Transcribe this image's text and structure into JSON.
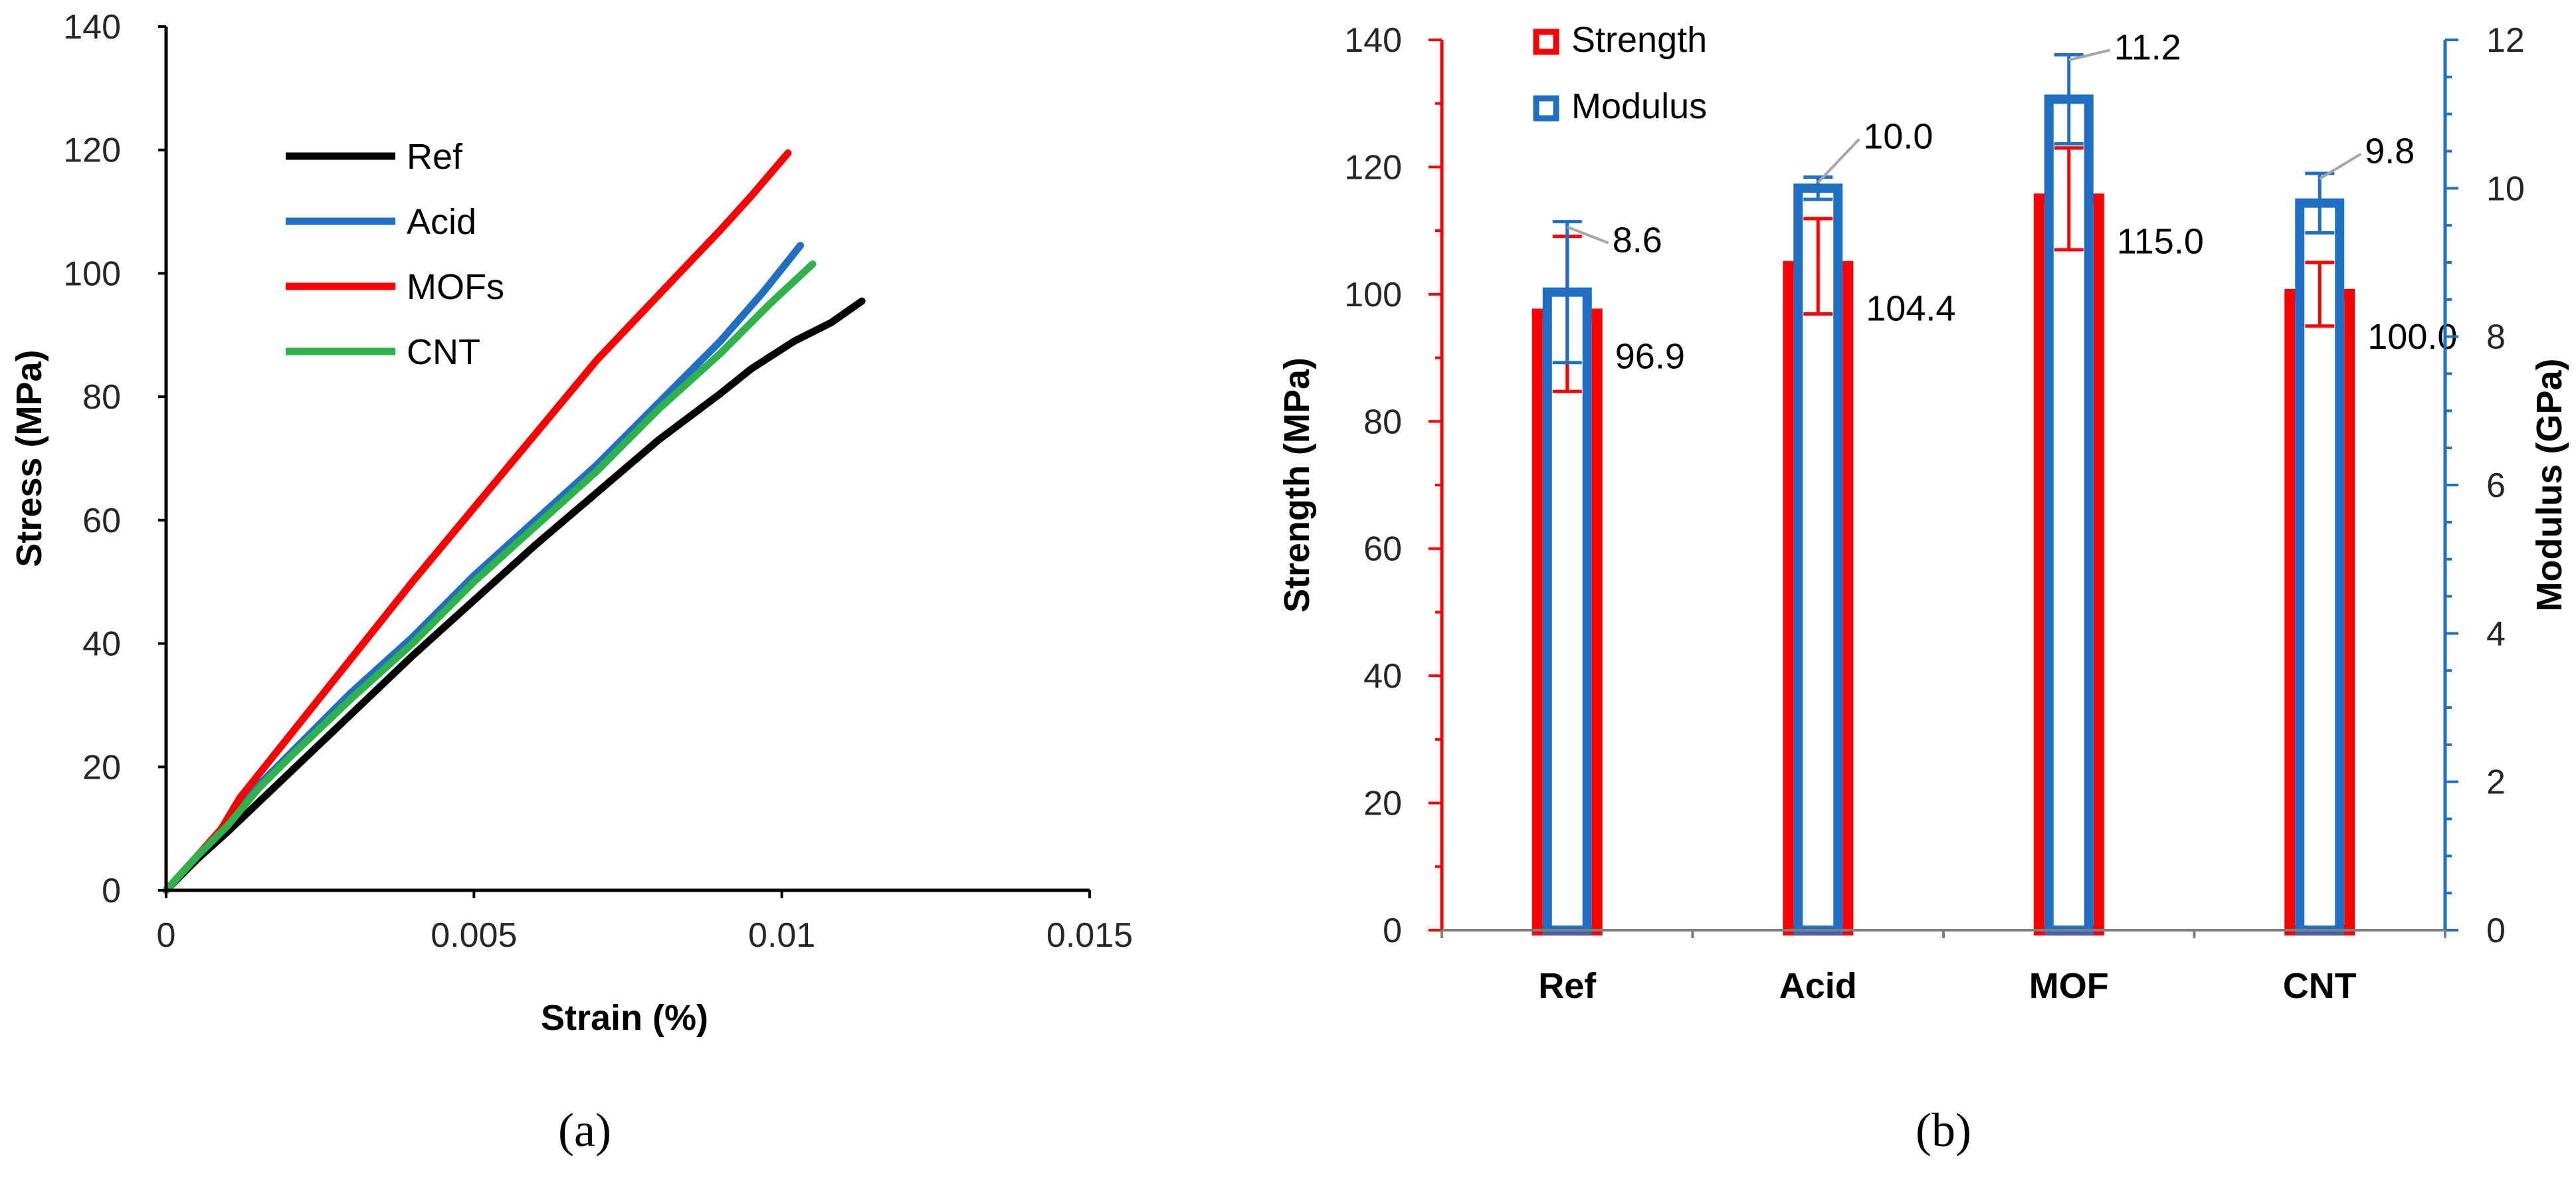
{
  "panels": {
    "a": "(a)",
    "b": "(b)"
  },
  "chart_data": [
    {
      "type": "line",
      "xlabel": "Strain (%)",
      "ylabel": "Stress (MPa)",
      "xlim": [
        0,
        0.015
      ],
      "ylim": [
        0,
        140
      ],
      "x_ticks": [
        "0",
        "0.005",
        "0.01",
        "0.015"
      ],
      "y_ticks": [
        "0",
        "20",
        "40",
        "60",
        "80",
        "100",
        "120",
        "140"
      ],
      "grid": false,
      "legend_position": "upper-left",
      "series": [
        {
          "name": "Ref",
          "color": "#000000",
          "points": [
            [
              0,
              0
            ],
            [
              0.0005,
              5
            ],
            [
              0.001,
              9.5
            ],
            [
              0.002,
              19
            ],
            [
              0.003,
              28.5
            ],
            [
              0.004,
              38
            ],
            [
              0.005,
              47
            ],
            [
              0.006,
              56
            ],
            [
              0.007,
              64.5
            ],
            [
              0.008,
              73
            ],
            [
              0.009,
              80.5
            ],
            [
              0.0095,
              84.5
            ],
            [
              0.0102,
              89
            ],
            [
              0.0108,
              92
            ],
            [
              0.0113,
              95.5
            ]
          ]
        },
        {
          "name": "Acid",
          "color": "#1f6fc4",
          "points": [
            [
              0,
              0
            ],
            [
              0.0005,
              5.5
            ],
            [
              0.001,
              10.5
            ],
            [
              0.0015,
              17
            ],
            [
              0.002,
              22
            ],
            [
              0.003,
              32
            ],
            [
              0.004,
              41
            ],
            [
              0.005,
              51
            ],
            [
              0.006,
              60
            ],
            [
              0.007,
              69
            ],
            [
              0.008,
              79
            ],
            [
              0.009,
              89
            ],
            [
              0.0097,
              97
            ],
            [
              0.0103,
              104.5
            ]
          ]
        },
        {
          "name": "MOFs",
          "color": "#ff0000",
          "points": [
            [
              0,
              0
            ],
            [
              0.0005,
              5.5
            ],
            [
              0.0009,
              10
            ],
            [
              0.0012,
              15
            ],
            [
              0.002,
              25
            ],
            [
              0.003,
              37.5
            ],
            [
              0.004,
              50
            ],
            [
              0.005,
              62
            ],
            [
              0.006,
              74
            ],
            [
              0.007,
              86
            ],
            [
              0.008,
              96.5
            ],
            [
              0.009,
              107
            ],
            [
              0.0095,
              112.5
            ],
            [
              0.0101,
              119.5
            ]
          ]
        },
        {
          "name": "CNT",
          "color": "#2db34a",
          "points": [
            [
              0,
              0
            ],
            [
              0.0005,
              5.5
            ],
            [
              0.001,
              10.5
            ],
            [
              0.0015,
              16.5
            ],
            [
              0.002,
              21.5
            ],
            [
              0.003,
              31
            ],
            [
              0.004,
              40
            ],
            [
              0.005,
              50
            ],
            [
              0.006,
              59
            ],
            [
              0.007,
              68
            ],
            [
              0.008,
              78
            ],
            [
              0.009,
              87
            ],
            [
              0.0098,
              95
            ],
            [
              0.0105,
              101.5
            ]
          ]
        }
      ]
    },
    {
      "type": "bar",
      "categories": [
        "Ref",
        "Acid",
        "MOF",
        "CNT"
      ],
      "ylabel": "Strength (MPa)",
      "y2label": "Modulus (GPa)",
      "ylim": [
        0,
        140
      ],
      "y2lim": [
        0,
        12
      ],
      "y_ticks": [
        "0",
        "20",
        "40",
        "60",
        "80",
        "100",
        "120",
        "140"
      ],
      "y2_ticks": [
        "0",
        "2",
        "4",
        "6",
        "8",
        "10",
        "12"
      ],
      "legend_position": "top-left",
      "series": [
        {
          "name": "Strength",
          "axis": "left",
          "color": "#ff0000",
          "values": [
            96.9,
            104.4,
            115.0,
            100.0
          ],
          "errors": [
            12.2,
            7.5,
            8.0,
            5.0
          ],
          "labels": [
            "96.9",
            "104.4",
            "115.0",
            "100.0"
          ]
        },
        {
          "name": "Modulus",
          "axis": "right",
          "color": "#1f6fc4",
          "values": [
            8.6,
            10.0,
            11.2,
            9.8
          ],
          "errors": [
            0.95,
            0.15,
            0.6,
            0.4
          ],
          "labels": [
            "8.6",
            "10.0",
            "11.2",
            "9.8"
          ]
        }
      ]
    }
  ]
}
